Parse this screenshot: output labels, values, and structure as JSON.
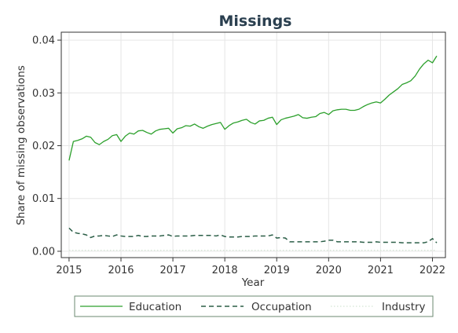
{
  "chart_data": {
    "type": "line",
    "title": "Missings",
    "xlabel": "Year",
    "ylabel": "Share of missing observations",
    "xlim": [
      2014.85,
      2022.25
    ],
    "ylim": [
      -0.0012,
      0.0415
    ],
    "xticks": [
      2015,
      2016,
      2017,
      2018,
      2019,
      2020,
      2021,
      2022
    ],
    "yticks": [
      0.0,
      0.01,
      0.02,
      0.03,
      0.04
    ],
    "ytick_labels": [
      "0.00",
      "0.01",
      "0.02",
      "0.03",
      "0.04"
    ],
    "grid": true,
    "legend_position": "bottom",
    "series": [
      {
        "name": "Education",
        "color": "#2ca02c",
        "dash": "solid",
        "points": [
          [
            2015.0,
            0.0172
          ],
          [
            2015.083,
            0.0208
          ],
          [
            2015.167,
            0.021
          ],
          [
            2015.25,
            0.0213
          ],
          [
            2015.333,
            0.0218
          ],
          [
            2015.417,
            0.0216
          ],
          [
            2015.5,
            0.0206
          ],
          [
            2015.583,
            0.0202
          ],
          [
            2015.667,
            0.0208
          ],
          [
            2015.75,
            0.0212
          ],
          [
            2015.833,
            0.0219
          ],
          [
            2015.917,
            0.0221
          ],
          [
            2016.0,
            0.0208
          ],
          [
            2016.083,
            0.0218
          ],
          [
            2016.167,
            0.0224
          ],
          [
            2016.25,
            0.0222
          ],
          [
            2016.333,
            0.0228
          ],
          [
            2016.417,
            0.0229
          ],
          [
            2016.5,
            0.0225
          ],
          [
            2016.583,
            0.0222
          ],
          [
            2016.667,
            0.0228
          ],
          [
            2016.75,
            0.0231
          ],
          [
            2016.833,
            0.0232
          ],
          [
            2016.917,
            0.0233
          ],
          [
            2017.0,
            0.0224
          ],
          [
            2017.083,
            0.0232
          ],
          [
            2017.167,
            0.0234
          ],
          [
            2017.25,
            0.0238
          ],
          [
            2017.333,
            0.0237
          ],
          [
            2017.417,
            0.0241
          ],
          [
            2017.5,
            0.0236
          ],
          [
            2017.583,
            0.0233
          ],
          [
            2017.667,
            0.0237
          ],
          [
            2017.75,
            0.024
          ],
          [
            2017.833,
            0.0242
          ],
          [
            2017.917,
            0.0244
          ],
          [
            2018.0,
            0.0231
          ],
          [
            2018.083,
            0.0238
          ],
          [
            2018.167,
            0.0243
          ],
          [
            2018.25,
            0.0245
          ],
          [
            2018.333,
            0.0248
          ],
          [
            2018.417,
            0.025
          ],
          [
            2018.5,
            0.0244
          ],
          [
            2018.583,
            0.0241
          ],
          [
            2018.667,
            0.0247
          ],
          [
            2018.75,
            0.0248
          ],
          [
            2018.833,
            0.0252
          ],
          [
            2018.917,
            0.0254
          ],
          [
            2019.0,
            0.024
          ],
          [
            2019.083,
            0.0249
          ],
          [
            2019.167,
            0.0252
          ],
          [
            2019.25,
            0.0254
          ],
          [
            2019.333,
            0.0256
          ],
          [
            2019.417,
            0.0259
          ],
          [
            2019.5,
            0.0253
          ],
          [
            2019.583,
            0.0252
          ],
          [
            2019.667,
            0.0254
          ],
          [
            2019.75,
            0.0255
          ],
          [
            2019.833,
            0.0261
          ],
          [
            2019.917,
            0.0263
          ],
          [
            2020.0,
            0.0259
          ],
          [
            2020.083,
            0.0266
          ],
          [
            2020.167,
            0.0268
          ],
          [
            2020.25,
            0.0269
          ],
          [
            2020.333,
            0.0269
          ],
          [
            2020.417,
            0.0267
          ],
          [
            2020.5,
            0.0267
          ],
          [
            2020.583,
            0.0269
          ],
          [
            2020.667,
            0.0274
          ],
          [
            2020.75,
            0.0278
          ],
          [
            2020.833,
            0.0281
          ],
          [
            2020.917,
            0.0283
          ],
          [
            2021.0,
            0.0281
          ],
          [
            2021.083,
            0.0288
          ],
          [
            2021.167,
            0.0296
          ],
          [
            2021.25,
            0.0302
          ],
          [
            2021.333,
            0.0308
          ],
          [
            2021.417,
            0.0316
          ],
          [
            2021.5,
            0.0319
          ],
          [
            2021.583,
            0.0323
          ],
          [
            2021.667,
            0.0332
          ],
          [
            2021.75,
            0.0345
          ],
          [
            2021.833,
            0.0355
          ],
          [
            2021.917,
            0.0362
          ],
          [
            2022.0,
            0.0357
          ],
          [
            2022.083,
            0.037
          ]
        ]
      },
      {
        "name": "Occupation",
        "color": "#2b5e47",
        "dash": "dashed",
        "points": [
          [
            2015.0,
            0.0044
          ],
          [
            2015.083,
            0.0036
          ],
          [
            2015.167,
            0.0034
          ],
          [
            2015.25,
            0.0033
          ],
          [
            2015.333,
            0.0031
          ],
          [
            2015.417,
            0.0026
          ],
          [
            2015.5,
            0.0029
          ],
          [
            2015.583,
            0.0029
          ],
          [
            2015.667,
            0.003
          ],
          [
            2015.75,
            0.0029
          ],
          [
            2015.833,
            0.0028
          ],
          [
            2015.917,
            0.0031
          ],
          [
            2016.0,
            0.0029
          ],
          [
            2016.083,
            0.0028
          ],
          [
            2016.167,
            0.0028
          ],
          [
            2016.25,
            0.0028
          ],
          [
            2016.333,
            0.003
          ],
          [
            2016.417,
            0.0028
          ],
          [
            2016.5,
            0.0028
          ],
          [
            2016.583,
            0.0029
          ],
          [
            2016.667,
            0.0029
          ],
          [
            2016.75,
            0.0029
          ],
          [
            2016.833,
            0.003
          ],
          [
            2016.917,
            0.0031
          ],
          [
            2017.0,
            0.0028
          ],
          [
            2017.083,
            0.0029
          ],
          [
            2017.167,
            0.0029
          ],
          [
            2017.25,
            0.0029
          ],
          [
            2017.333,
            0.0029
          ],
          [
            2017.417,
            0.003
          ],
          [
            2017.5,
            0.003
          ],
          [
            2017.583,
            0.003
          ],
          [
            2017.667,
            0.003
          ],
          [
            2017.75,
            0.003
          ],
          [
            2017.833,
            0.0029
          ],
          [
            2017.917,
            0.0031
          ],
          [
            2018.0,
            0.0028
          ],
          [
            2018.083,
            0.0027
          ],
          [
            2018.167,
            0.0027
          ],
          [
            2018.25,
            0.0027
          ],
          [
            2018.333,
            0.0028
          ],
          [
            2018.417,
            0.0028
          ],
          [
            2018.5,
            0.0028
          ],
          [
            2018.583,
            0.0029
          ],
          [
            2018.667,
            0.0029
          ],
          [
            2018.75,
            0.0029
          ],
          [
            2018.833,
            0.0029
          ],
          [
            2018.917,
            0.0031
          ],
          [
            2019.0,
            0.0025
          ],
          [
            2019.083,
            0.0026
          ],
          [
            2019.167,
            0.0025
          ],
          [
            2019.25,
            0.0018
          ],
          [
            2019.333,
            0.0018
          ],
          [
            2019.417,
            0.0018
          ],
          [
            2019.5,
            0.0018
          ],
          [
            2019.583,
            0.0018
          ],
          [
            2019.667,
            0.0018
          ],
          [
            2019.75,
            0.0018
          ],
          [
            2019.833,
            0.0018
          ],
          [
            2019.917,
            0.0019
          ],
          [
            2020.0,
            0.0021
          ],
          [
            2020.083,
            0.0021
          ],
          [
            2020.167,
            0.0018
          ],
          [
            2020.25,
            0.0018
          ],
          [
            2020.333,
            0.0018
          ],
          [
            2020.417,
            0.0018
          ],
          [
            2020.5,
            0.0018
          ],
          [
            2020.583,
            0.0018
          ],
          [
            2020.667,
            0.0017
          ],
          [
            2020.75,
            0.0017
          ],
          [
            2020.833,
            0.0017
          ],
          [
            2020.917,
            0.0018
          ],
          [
            2021.0,
            0.0017
          ],
          [
            2021.083,
            0.0017
          ],
          [
            2021.167,
            0.0017
          ],
          [
            2021.25,
            0.0017
          ],
          [
            2021.333,
            0.0017
          ],
          [
            2021.417,
            0.0016
          ],
          [
            2021.5,
            0.0016
          ],
          [
            2021.583,
            0.0016
          ],
          [
            2021.667,
            0.0016
          ],
          [
            2021.75,
            0.0016
          ],
          [
            2021.833,
            0.0016
          ],
          [
            2021.917,
            0.0018
          ],
          [
            2022.0,
            0.0024
          ],
          [
            2022.083,
            0.0016
          ]
        ]
      },
      {
        "name": "Industry",
        "color": "#d4e6d4",
        "dash": "dotted",
        "points": [
          [
            2015.0,
            0.0002
          ],
          [
            2015.5,
            0.0002
          ],
          [
            2016.0,
            0.0002
          ],
          [
            2016.5,
            0.0002
          ],
          [
            2017.0,
            0.0002
          ],
          [
            2017.5,
            0.0002
          ],
          [
            2018.0,
            0.0002
          ],
          [
            2018.5,
            0.0002
          ],
          [
            2019.0,
            0.0002
          ],
          [
            2019.5,
            0.0002
          ],
          [
            2020.0,
            0.0002
          ],
          [
            2020.5,
            0.0002
          ],
          [
            2021.0,
            0.0002
          ],
          [
            2021.5,
            0.0002
          ],
          [
            2022.0,
            0.0002
          ],
          [
            2022.083,
            0.0002
          ]
        ]
      }
    ]
  }
}
